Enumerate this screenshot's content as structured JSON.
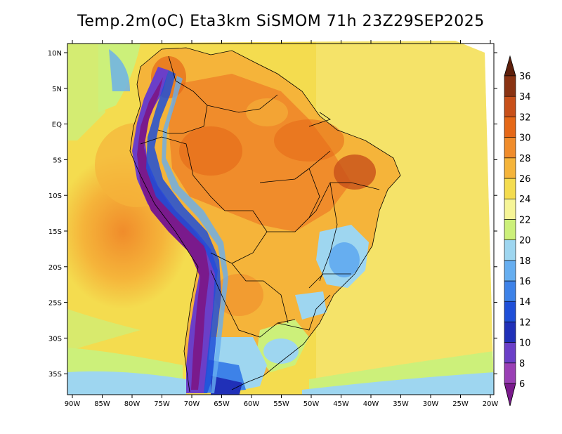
{
  "title": "Temp.2m(oC) Eta3km SiSMOM 71h 23Z29SEP2025",
  "lon_labels": [
    "90W",
    "85W",
    "80W",
    "75W",
    "70W",
    "65W",
    "60W",
    "55W",
    "50W",
    "45W",
    "40W",
    "35W",
    "30W",
    "25W",
    "20W"
  ],
  "lat_labels": [
    "10N",
    "5N",
    "EQ",
    "5S",
    "10S",
    "15S",
    "20S",
    "25S",
    "30S",
    "35S"
  ],
  "colorbar": {
    "levels": [
      "6",
      "8",
      "10",
      "12",
      "14",
      "16",
      "18",
      "20",
      "22",
      "24",
      "26",
      "28",
      "30",
      "32",
      "34",
      "36"
    ],
    "colors": [
      "#7a1a8c",
      "#9a3fb5",
      "#6b3fc8",
      "#2030b8",
      "#1f4fd8",
      "#3d82e8",
      "#66aef0",
      "#9ed6f0",
      "#ccf07a",
      "#f6f597",
      "#f4dc4f",
      "#f5b43a",
      "#f08c2b",
      "#e56818",
      "#c8501a",
      "#8a3313",
      "#5e200c"
    ]
  },
  "chart_data": {
    "type": "heatmap",
    "title": "Temp.2m(oC) Eta3km SiSMOM 71h 23Z29SEP2025",
    "variable": "2m temperature",
    "units": "oC",
    "lon_range": [
      -90,
      -20
    ],
    "lat_range": [
      -37,
      12
    ],
    "color_levels": [
      6,
      8,
      10,
      12,
      14,
      16,
      18,
      20,
      22,
      24,
      26,
      28,
      30,
      32,
      34,
      36
    ]
  }
}
